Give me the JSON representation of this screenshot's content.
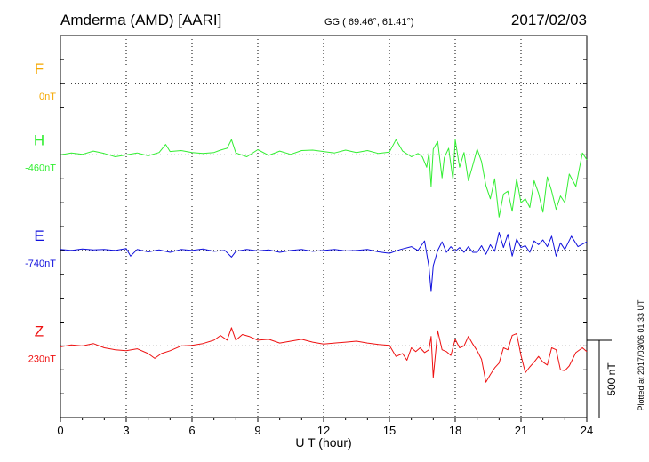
{
  "header": {
    "station": "Amderma (AMD)  [AARI]",
    "coords": "GG ( 69.46°,  61.41°)",
    "date": "2017/02/03"
  },
  "plotted_note": "Plotted at 2017/03/06 01:33 UT",
  "scale_label": "500 nT",
  "chart_data": {
    "type": "line",
    "xlabel": "U T (hour)",
    "xlim": [
      0,
      24
    ],
    "xticks": [
      0,
      3,
      6,
      9,
      12,
      15,
      18,
      21,
      24
    ],
    "ylim_nT": [
      -2500,
      1500
    ],
    "grid": true,
    "scale_bar_nT": 500,
    "series": [
      {
        "name": "F",
        "baseline": "0nT",
        "color": "#f5a800",
        "offset_nT": 1000,
        "values": []
      },
      {
        "name": "H",
        "baseline": "-460nT",
        "color": "#33ee33",
        "offset_nT": 250,
        "x": [
          0,
          0.5,
          1,
          1.5,
          2,
          2.5,
          3,
          3.5,
          4,
          4.5,
          4.8,
          5,
          5.5,
          6,
          6.5,
          7,
          7.3,
          7.6,
          7.8,
          8,
          8.5,
          9,
          9.5,
          10,
          10.5,
          11,
          11.5,
          12,
          12.5,
          13,
          13.5,
          14,
          14.5,
          15,
          15.3,
          15.6,
          16,
          16.3,
          16.5,
          16.7,
          16.8,
          16.9,
          17,
          17.2,
          17.4,
          17.5,
          17.7,
          17.9,
          18,
          18.2,
          18.4,
          18.6,
          18.8,
          19,
          19.2,
          19.4,
          19.6,
          19.8,
          20,
          20.2,
          20.4,
          20.6,
          20.8,
          21,
          21.2,
          21.4,
          21.6,
          21.8,
          22,
          22.2,
          22.4,
          22.6,
          22.8,
          23,
          23.2,
          23.5,
          23.8,
          24
        ],
        "values": [
          0,
          20,
          5,
          40,
          15,
          -20,
          0,
          20,
          -10,
          25,
          110,
          35,
          45,
          25,
          15,
          25,
          50,
          70,
          160,
          20,
          -20,
          55,
          -5,
          40,
          5,
          45,
          50,
          35,
          20,
          50,
          25,
          45,
          15,
          30,
          160,
          40,
          -20,
          15,
          -20,
          -130,
          20,
          -330,
          60,
          140,
          -240,
          -30,
          70,
          -260,
          160,
          -130,
          25,
          -270,
          -110,
          60,
          -70,
          -320,
          -460,
          -250,
          -650,
          -410,
          -380,
          -590,
          -250,
          -500,
          -460,
          -550,
          -270,
          -400,
          -600,
          -230,
          -380,
          -570,
          -430,
          -500,
          -200,
          -330,
          20,
          -50
        ]
      },
      {
        "name": "E",
        "baseline": "-740nT",
        "color": "#1010dd",
        "offset_nT": -750,
        "x": [
          0,
          0.5,
          1,
          1.5,
          2,
          2.5,
          3,
          3.2,
          3.5,
          4,
          4.5,
          5,
          5.5,
          6,
          6.5,
          7,
          7.5,
          7.8,
          8,
          8.5,
          9,
          9.5,
          10,
          10.5,
          11,
          11.5,
          12,
          12.5,
          13,
          13.5,
          14,
          14.5,
          15,
          15.5,
          16,
          16.3,
          16.6,
          16.8,
          16.9,
          17,
          17.2,
          17.4,
          17.6,
          17.8,
          18,
          18.2,
          18.4,
          18.6,
          18.8,
          19,
          19.2,
          19.4,
          19.6,
          19.8,
          20,
          20.2,
          20.4,
          20.6,
          20.8,
          21,
          21.2,
          21.4,
          21.6,
          21.8,
          22,
          22.2,
          22.4,
          22.6,
          22.8,
          23,
          23.3,
          23.6,
          24
        ],
        "values": [
          10,
          0,
          15,
          5,
          10,
          0,
          20,
          -60,
          10,
          -15,
          5,
          -20,
          10,
          0,
          15,
          -10,
          0,
          -70,
          -10,
          10,
          -5,
          5,
          -20,
          0,
          10,
          -10,
          0,
          10,
          -5,
          0,
          10,
          -15,
          -30,
          10,
          40,
          0,
          100,
          -170,
          -430,
          -160,
          0,
          90,
          -20,
          40,
          -10,
          30,
          -20,
          40,
          -20,
          -20,
          50,
          -40,
          60,
          -10,
          190,
          30,
          170,
          -60,
          120,
          30,
          50,
          -20,
          100,
          60,
          110,
          40,
          150,
          -60,
          80,
          10,
          150,
          40,
          90
        ]
      },
      {
        "name": "Z",
        "baseline": "230nT",
        "color": "#ee1111",
        "offset_nT": -1750,
        "x": [
          0,
          0.5,
          1,
          1.5,
          2,
          2.5,
          3,
          3.5,
          4,
          4.3,
          4.6,
          5,
          5.5,
          6,
          6.5,
          7,
          7.3,
          7.6,
          7.8,
          8,
          8.3,
          8.6,
          9,
          9.5,
          10,
          10.5,
          11,
          11.5,
          12,
          12.5,
          13,
          13.5,
          14,
          14.5,
          15,
          15.3,
          15.6,
          15.8,
          16,
          16.2,
          16.4,
          16.6,
          16.8,
          16.9,
          17,
          17.2,
          17.4,
          17.6,
          17.8,
          18,
          18.2,
          18.4,
          18.6,
          18.8,
          19,
          19.2,
          19.4,
          19.6,
          19.8,
          20,
          20.2,
          20.4,
          20.6,
          20.8,
          21,
          21.2,
          21.4,
          21.6,
          21.8,
          22,
          22.2,
          22.4,
          22.6,
          22.8,
          23,
          23.2,
          23.5,
          23.8,
          24
        ],
        "values": [
          -10,
          10,
          0,
          25,
          -20,
          -40,
          -50,
          -30,
          -80,
          -130,
          -80,
          -50,
          0,
          5,
          25,
          60,
          110,
          60,
          190,
          60,
          120,
          100,
          60,
          70,
          30,
          50,
          70,
          40,
          20,
          30,
          40,
          50,
          30,
          15,
          5,
          -110,
          -80,
          -150,
          -20,
          -60,
          -20,
          -70,
          -40,
          100,
          -330,
          160,
          -40,
          -60,
          -100,
          70,
          -20,
          0,
          100,
          20,
          -50,
          -140,
          -380,
          -300,
          -230,
          -180,
          -20,
          -40,
          110,
          130,
          -100,
          -280,
          -220,
          -170,
          -110,
          -170,
          -200,
          -20,
          -40,
          -250,
          -260,
          -210,
          -70,
          -20,
          -60
        ]
      }
    ]
  }
}
